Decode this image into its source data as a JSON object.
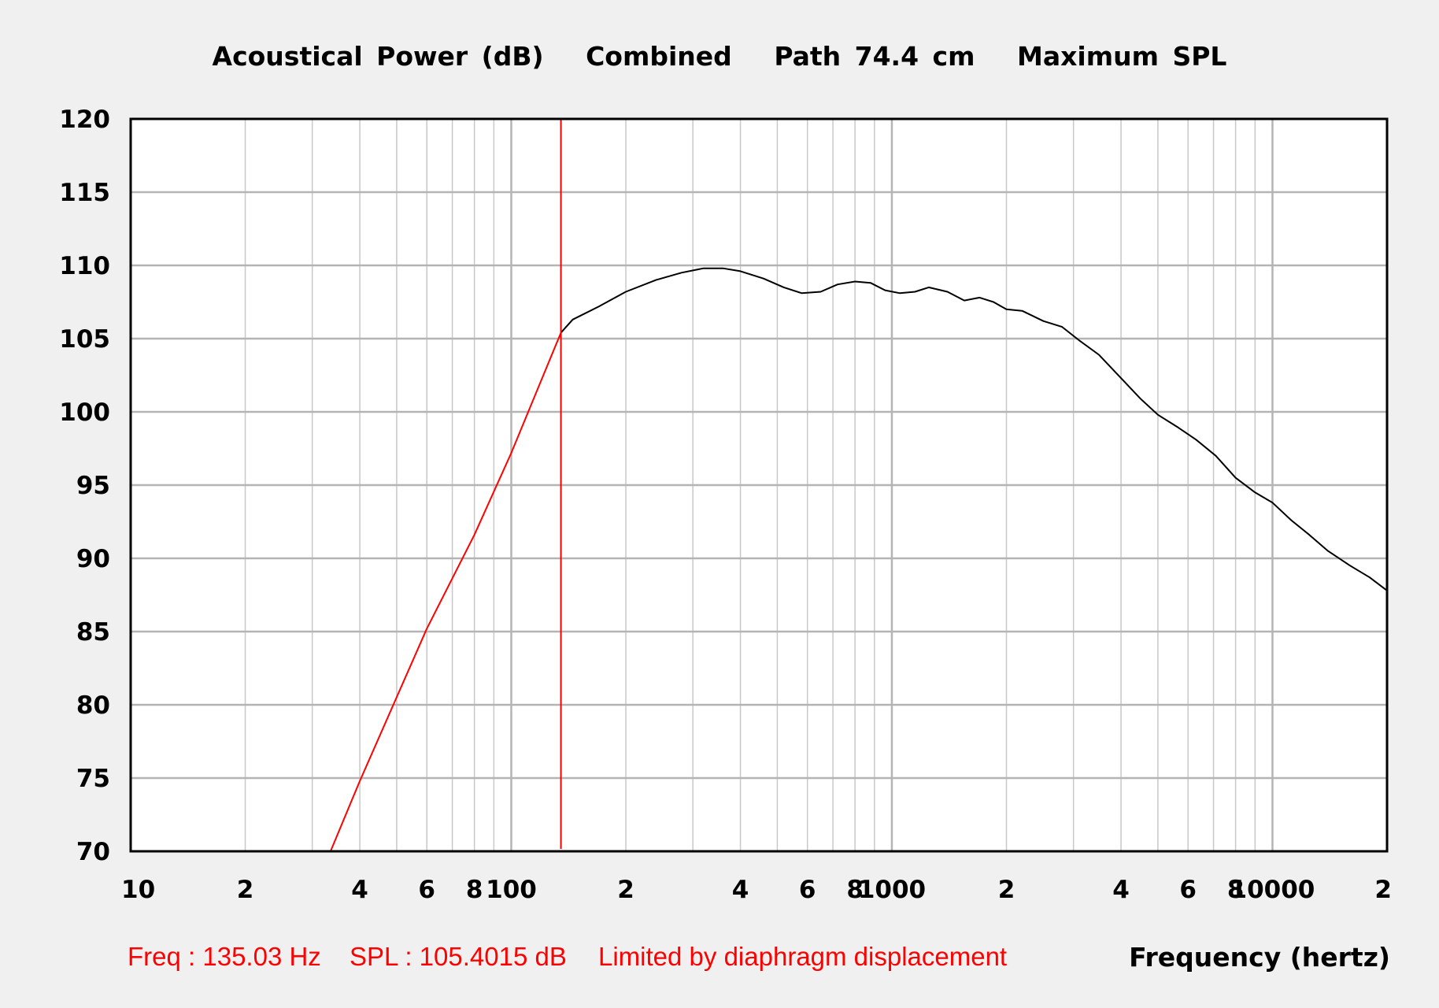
{
  "title": {
    "parts": [
      "Acoustical Power (dB)",
      "Combined",
      "Path 74.4 cm",
      "Maximum SPL"
    ]
  },
  "status": {
    "freq": "Freq : 135.03 Hz",
    "spl": "SPL : 105.4015 dB",
    "note": "Limited by diaphragm displacement"
  },
  "colors": {
    "background": "#f0f0f0",
    "plot_bg": "#ffffff",
    "grid": "#c8c8c8",
    "grid_major": "#b4b4b4",
    "curve": "#000000",
    "limit": "#ff0000"
  },
  "chart_data": {
    "type": "line",
    "title": "Acoustical Power (dB) Combined Path 74.4 cm Maximum SPL",
    "xlabel": "Frequency (hertz)",
    "ylabel": "",
    "xscale": "log",
    "xlim": [
      10,
      20000
    ],
    "ylim": [
      70,
      120
    ],
    "grid": true,
    "yticks": [
      "120",
      "115",
      "110",
      "105",
      "100",
      "95",
      "90",
      "85",
      "80",
      "75",
      "70"
    ],
    "xticks": [
      {
        "value": 10,
        "label": "10"
      },
      {
        "value": 20,
        "label": "2"
      },
      {
        "value": 40,
        "label": "4"
      },
      {
        "value": 60,
        "label": "6"
      },
      {
        "value": 80,
        "label": "8"
      },
      {
        "value": 100,
        "label": "100"
      },
      {
        "value": 200,
        "label": "2"
      },
      {
        "value": 400,
        "label": "4"
      },
      {
        "value": 600,
        "label": "6"
      },
      {
        "value": 800,
        "label": "8"
      },
      {
        "value": 1000,
        "label": "1000"
      },
      {
        "value": 2000,
        "label": "2"
      },
      {
        "value": 4000,
        "label": "4"
      },
      {
        "value": 6000,
        "label": "6"
      },
      {
        "value": 8000,
        "label": "8"
      },
      {
        "value": 10000,
        "label": "10000"
      },
      {
        "value": 20000,
        "label": "2"
      }
    ],
    "cursor": {
      "freq": 135.03,
      "spl": 105.4015
    },
    "series": [
      {
        "name": "limited",
        "color": "#ff0000",
        "x": [
          33.5,
          40,
          60,
          80,
          100,
          135.03
        ],
        "y": [
          70,
          74.8,
          85.2,
          91.6,
          97.2,
          105.4
        ]
      },
      {
        "name": "response",
        "color": "#000000",
        "x": [
          135.03,
          145,
          170,
          200,
          240,
          280,
          320,
          360,
          400,
          460,
          520,
          580,
          650,
          720,
          800,
          880,
          960,
          1050,
          1150,
          1250,
          1400,
          1550,
          1700,
          1850,
          2000,
          2200,
          2500,
          2800,
          3100,
          3500,
          4000,
          4500,
          5000,
          5600,
          6300,
          7100,
          8000,
          9000,
          10000,
          11200,
          12500,
          14000,
          16000,
          18000,
          20000
        ],
        "y": [
          105.4,
          106.3,
          107.2,
          108.2,
          109.0,
          109.5,
          109.8,
          109.8,
          109.6,
          109.1,
          108.5,
          108.1,
          108.2,
          108.7,
          108.9,
          108.8,
          108.3,
          108.1,
          108.2,
          108.5,
          108.2,
          107.6,
          107.8,
          107.5,
          107.0,
          106.9,
          106.2,
          105.8,
          104.9,
          103.9,
          102.3,
          100.9,
          99.8,
          99.0,
          98.1,
          97.0,
          95.5,
          94.5,
          93.8,
          92.6,
          91.6,
          90.5,
          89.5,
          88.7,
          87.8
        ]
      }
    ]
  }
}
